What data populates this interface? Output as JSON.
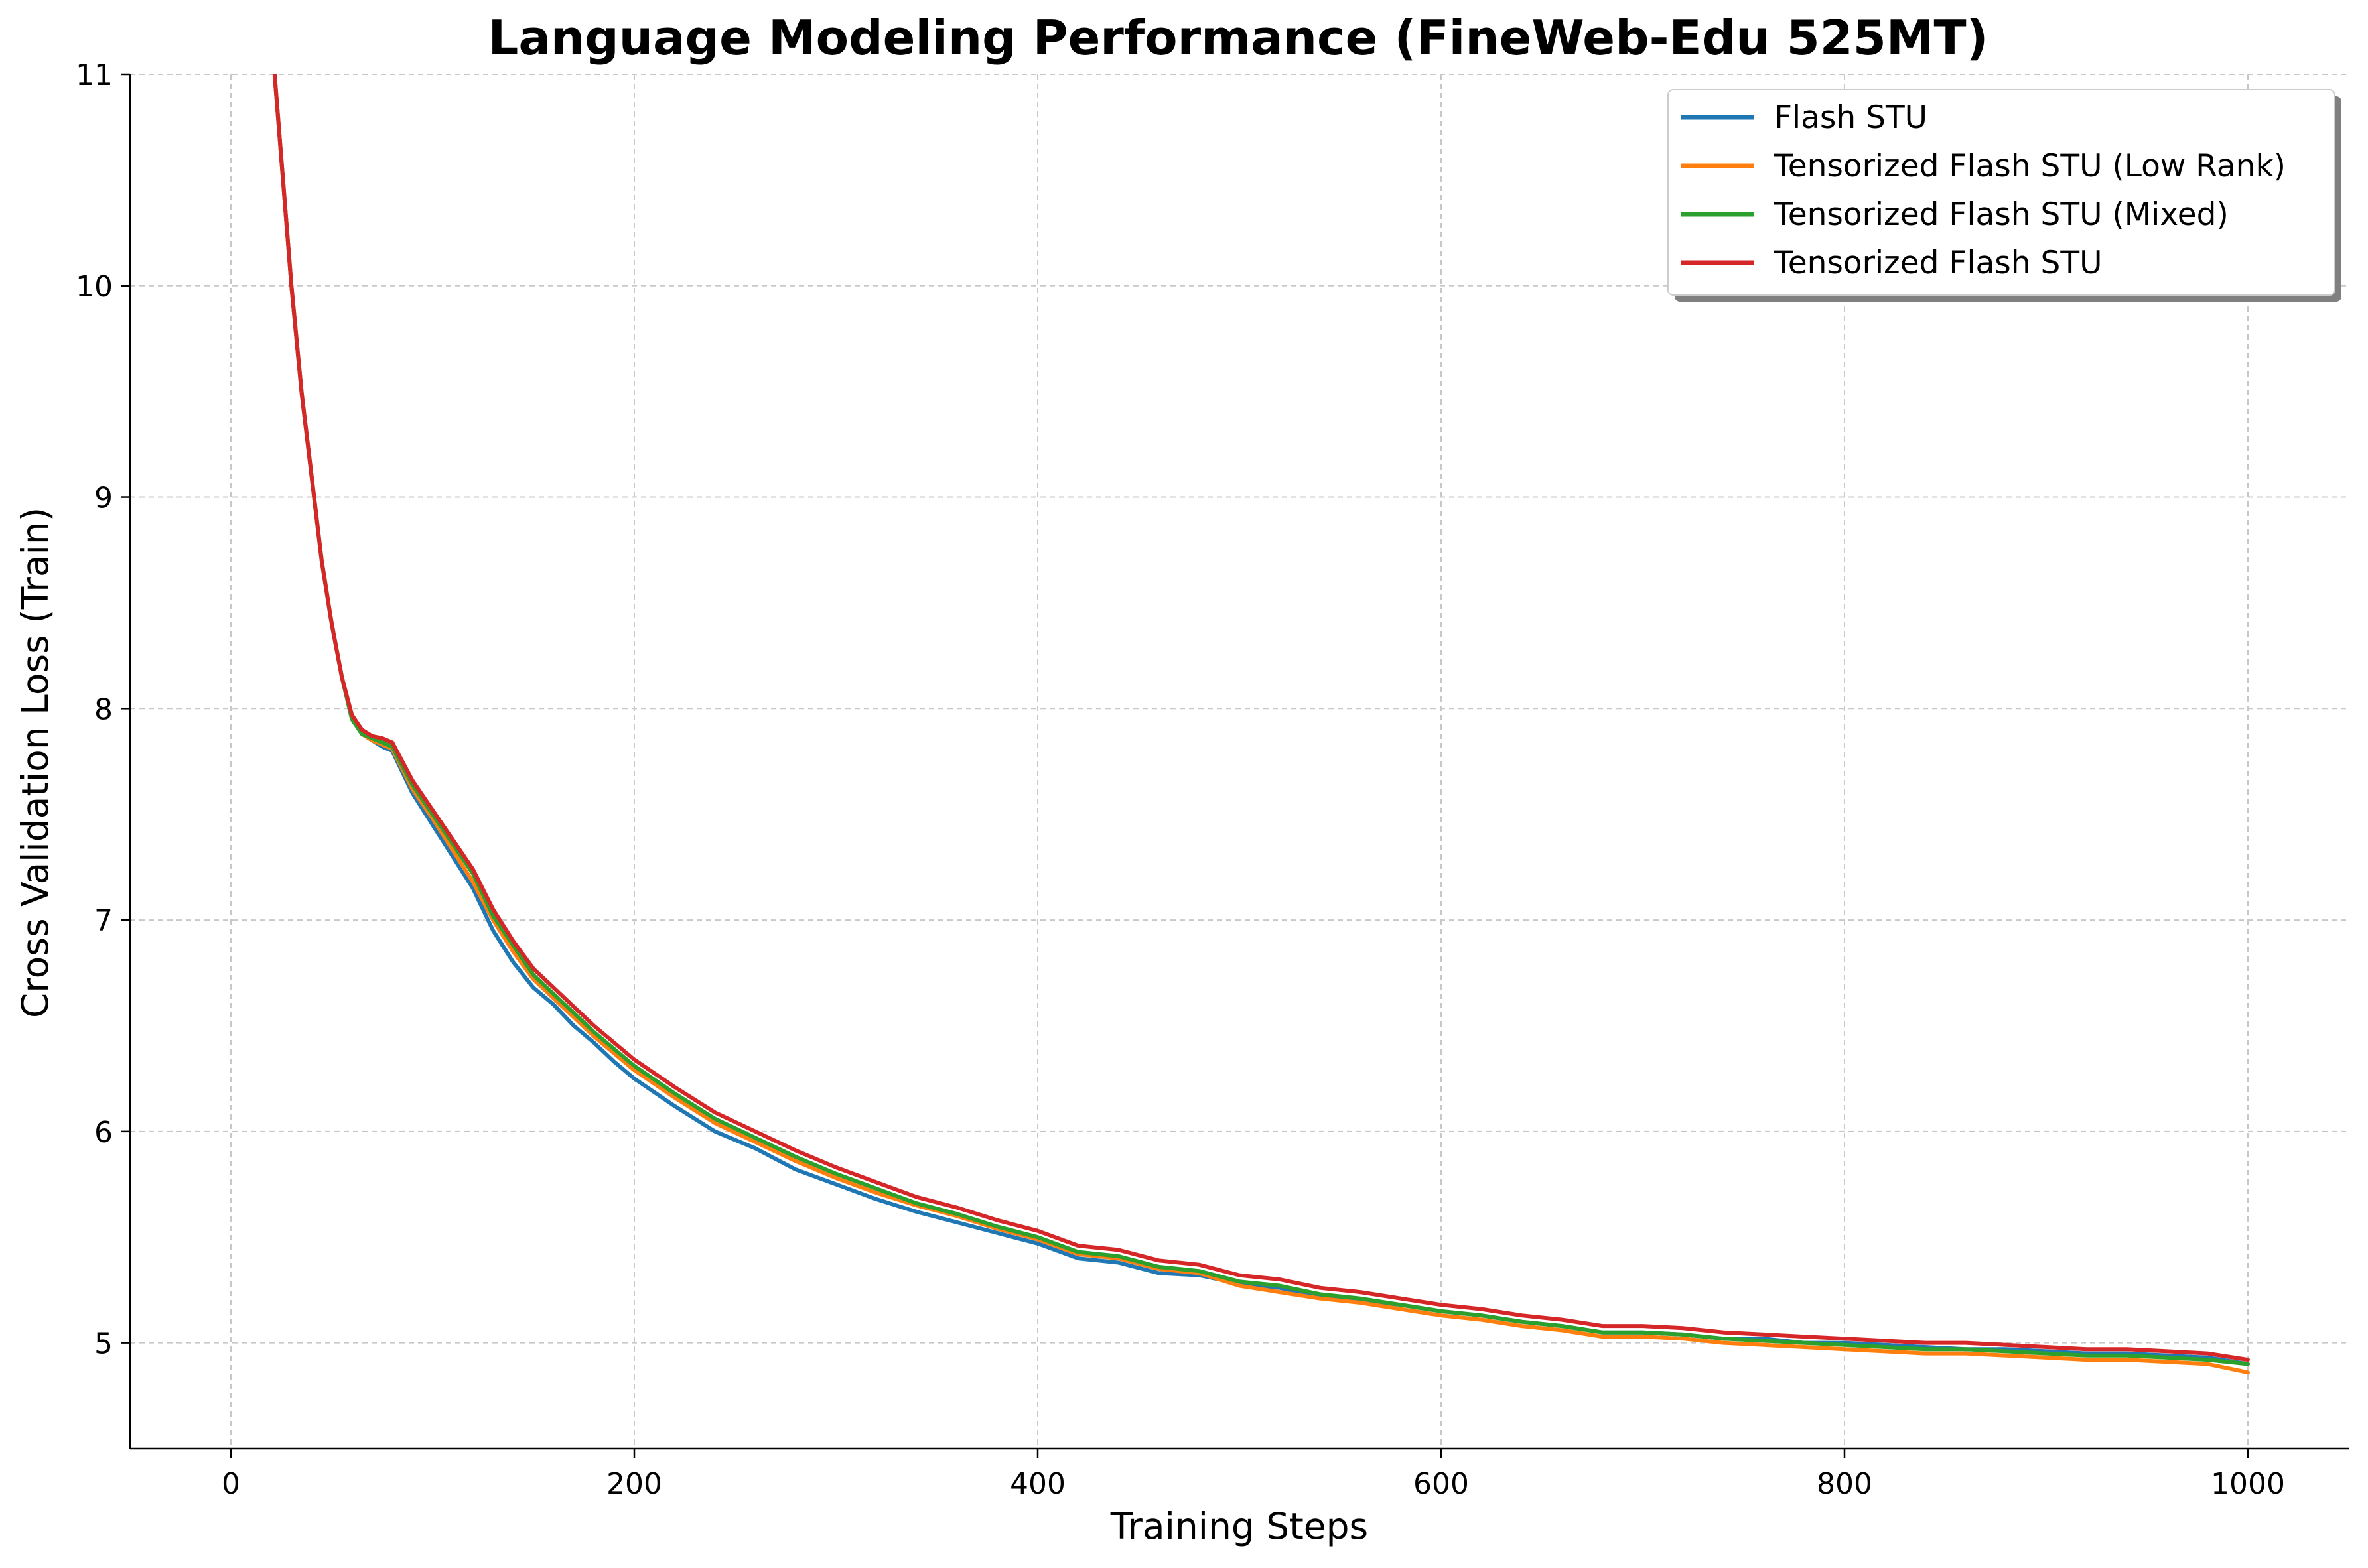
{
  "chart_data": {
    "type": "line",
    "title": "Language Modeling Performance (FineWeb-Edu 525MT)",
    "xlabel": "Training Steps",
    "ylabel": "Cross Validation Loss (Train)",
    "xlim": [
      -50,
      1050
    ],
    "ylim": [
      4.5,
      11
    ],
    "xticks": [
      0,
      200,
      400,
      600,
      800,
      1000
    ],
    "yticks": [
      5,
      6,
      7,
      8,
      9,
      10,
      11
    ],
    "grid": true,
    "legend_position": "top-right",
    "series": [
      {
        "name": "Flash STU",
        "color": "#1f77b4",
        "x": [
          20,
          25,
          30,
          35,
          40,
          45,
          50,
          55,
          60,
          65,
          70,
          75,
          80,
          90,
          100,
          110,
          120,
          130,
          140,
          150,
          160,
          170,
          180,
          190,
          200,
          220,
          240,
          260,
          280,
          300,
          320,
          340,
          360,
          380,
          400,
          420,
          440,
          460,
          480,
          500,
          520,
          540,
          560,
          580,
          600,
          620,
          640,
          660,
          680,
          700,
          720,
          740,
          760,
          780,
          800,
          820,
          840,
          860,
          880,
          900,
          920,
          940,
          960,
          980,
          1000
        ],
        "y": [
          11.2,
          10.6,
          10.0,
          9.5,
          9.1,
          8.7,
          8.4,
          8.15,
          7.95,
          7.88,
          7.85,
          7.82,
          7.8,
          7.6,
          7.45,
          7.3,
          7.15,
          6.95,
          6.8,
          6.68,
          6.6,
          6.5,
          6.42,
          6.33,
          6.25,
          6.12,
          6.0,
          5.92,
          5.82,
          5.75,
          5.68,
          5.62,
          5.57,
          5.52,
          5.47,
          5.4,
          5.38,
          5.33,
          5.32,
          5.28,
          5.26,
          5.22,
          5.2,
          5.18,
          5.15,
          5.13,
          5.1,
          5.08,
          5.05,
          5.05,
          5.04,
          5.02,
          5.02,
          5.0,
          5.0,
          4.99,
          4.98,
          4.97,
          4.97,
          4.96,
          4.95,
          4.95,
          4.94,
          4.93,
          4.9
        ]
      },
      {
        "name": "Tensorized Flash STU (Low Rank)",
        "color": "#ff7f0e",
        "x": [
          20,
          25,
          30,
          35,
          40,
          45,
          50,
          55,
          60,
          65,
          70,
          75,
          80,
          90,
          100,
          110,
          120,
          130,
          140,
          150,
          160,
          170,
          180,
          190,
          200,
          220,
          240,
          260,
          280,
          300,
          320,
          340,
          360,
          380,
          400,
          420,
          440,
          460,
          480,
          500,
          520,
          540,
          560,
          580,
          600,
          620,
          640,
          660,
          680,
          700,
          720,
          740,
          760,
          780,
          800,
          820,
          840,
          860,
          880,
          900,
          920,
          940,
          960,
          980,
          1000
        ],
        "y": [
          11.2,
          10.6,
          10.0,
          9.5,
          9.1,
          8.7,
          8.4,
          8.15,
          7.95,
          7.88,
          7.85,
          7.83,
          7.81,
          7.62,
          7.48,
          7.33,
          7.18,
          7.0,
          6.85,
          6.72,
          6.63,
          6.54,
          6.45,
          6.37,
          6.29,
          6.16,
          6.04,
          5.95,
          5.86,
          5.78,
          5.71,
          5.65,
          5.6,
          5.54,
          5.49,
          5.42,
          5.4,
          5.35,
          5.33,
          5.27,
          5.24,
          5.21,
          5.19,
          5.16,
          5.13,
          5.11,
          5.08,
          5.06,
          5.03,
          5.03,
          5.02,
          5.0,
          4.99,
          4.98,
          4.97,
          4.96,
          4.95,
          4.95,
          4.94,
          4.93,
          4.92,
          4.92,
          4.91,
          4.9,
          4.86
        ]
      },
      {
        "name": "Tensorized Flash STU (Mixed)",
        "color": "#2ca02c",
        "x": [
          20,
          25,
          30,
          35,
          40,
          45,
          50,
          55,
          60,
          65,
          70,
          75,
          80,
          90,
          100,
          110,
          120,
          130,
          140,
          150,
          160,
          170,
          180,
          190,
          200,
          220,
          240,
          260,
          280,
          300,
          320,
          340,
          360,
          380,
          400,
          420,
          440,
          460,
          480,
          500,
          520,
          540,
          560,
          580,
          600,
          620,
          640,
          660,
          680,
          700,
          720,
          740,
          760,
          780,
          800,
          820,
          840,
          860,
          880,
          900,
          920,
          940,
          960,
          980,
          1000
        ],
        "y": [
          11.2,
          10.6,
          10.0,
          9.5,
          9.1,
          8.7,
          8.4,
          8.15,
          7.95,
          7.88,
          7.86,
          7.84,
          7.82,
          7.64,
          7.5,
          7.36,
          7.22,
          7.02,
          6.88,
          6.74,
          6.65,
          6.56,
          6.47,
          6.39,
          6.31,
          6.18,
          6.06,
          5.97,
          5.88,
          5.8,
          5.73,
          5.66,
          5.61,
          5.55,
          5.5,
          5.43,
          5.41,
          5.36,
          5.34,
          5.29,
          5.27,
          5.23,
          5.21,
          5.18,
          5.15,
          5.13,
          5.1,
          5.08,
          5.05,
          5.05,
          5.04,
          5.02,
          5.01,
          5.0,
          4.99,
          4.98,
          4.97,
          4.97,
          4.96,
          4.95,
          4.94,
          4.94,
          4.93,
          4.92,
          4.9
        ]
      },
      {
        "name": "Tensorized Flash STU",
        "color": "#d62728",
        "x": [
          20,
          25,
          30,
          35,
          40,
          45,
          50,
          55,
          60,
          65,
          70,
          75,
          80,
          90,
          100,
          110,
          120,
          130,
          140,
          150,
          160,
          170,
          180,
          190,
          200,
          220,
          240,
          260,
          280,
          300,
          320,
          340,
          360,
          380,
          400,
          420,
          440,
          460,
          480,
          500,
          520,
          540,
          560,
          580,
          600,
          620,
          640,
          660,
          680,
          700,
          720,
          740,
          760,
          780,
          800,
          820,
          840,
          860,
          880,
          900,
          920,
          940,
          960,
          980,
          1000
        ],
        "y": [
          11.2,
          10.6,
          10.0,
          9.5,
          9.1,
          8.7,
          8.4,
          8.15,
          7.97,
          7.9,
          7.87,
          7.86,
          7.84,
          7.66,
          7.52,
          7.38,
          7.24,
          7.05,
          6.9,
          6.77,
          6.68,
          6.59,
          6.5,
          6.42,
          6.34,
          6.21,
          6.09,
          6.0,
          5.91,
          5.83,
          5.76,
          5.69,
          5.64,
          5.58,
          5.53,
          5.46,
          5.44,
          5.39,
          5.37,
          5.32,
          5.3,
          5.26,
          5.24,
          5.21,
          5.18,
          5.16,
          5.13,
          5.11,
          5.08,
          5.08,
          5.07,
          5.05,
          5.04,
          5.03,
          5.02,
          5.01,
          5.0,
          5.0,
          4.99,
          4.98,
          4.97,
          4.97,
          4.96,
          4.95,
          4.92
        ]
      }
    ]
  }
}
